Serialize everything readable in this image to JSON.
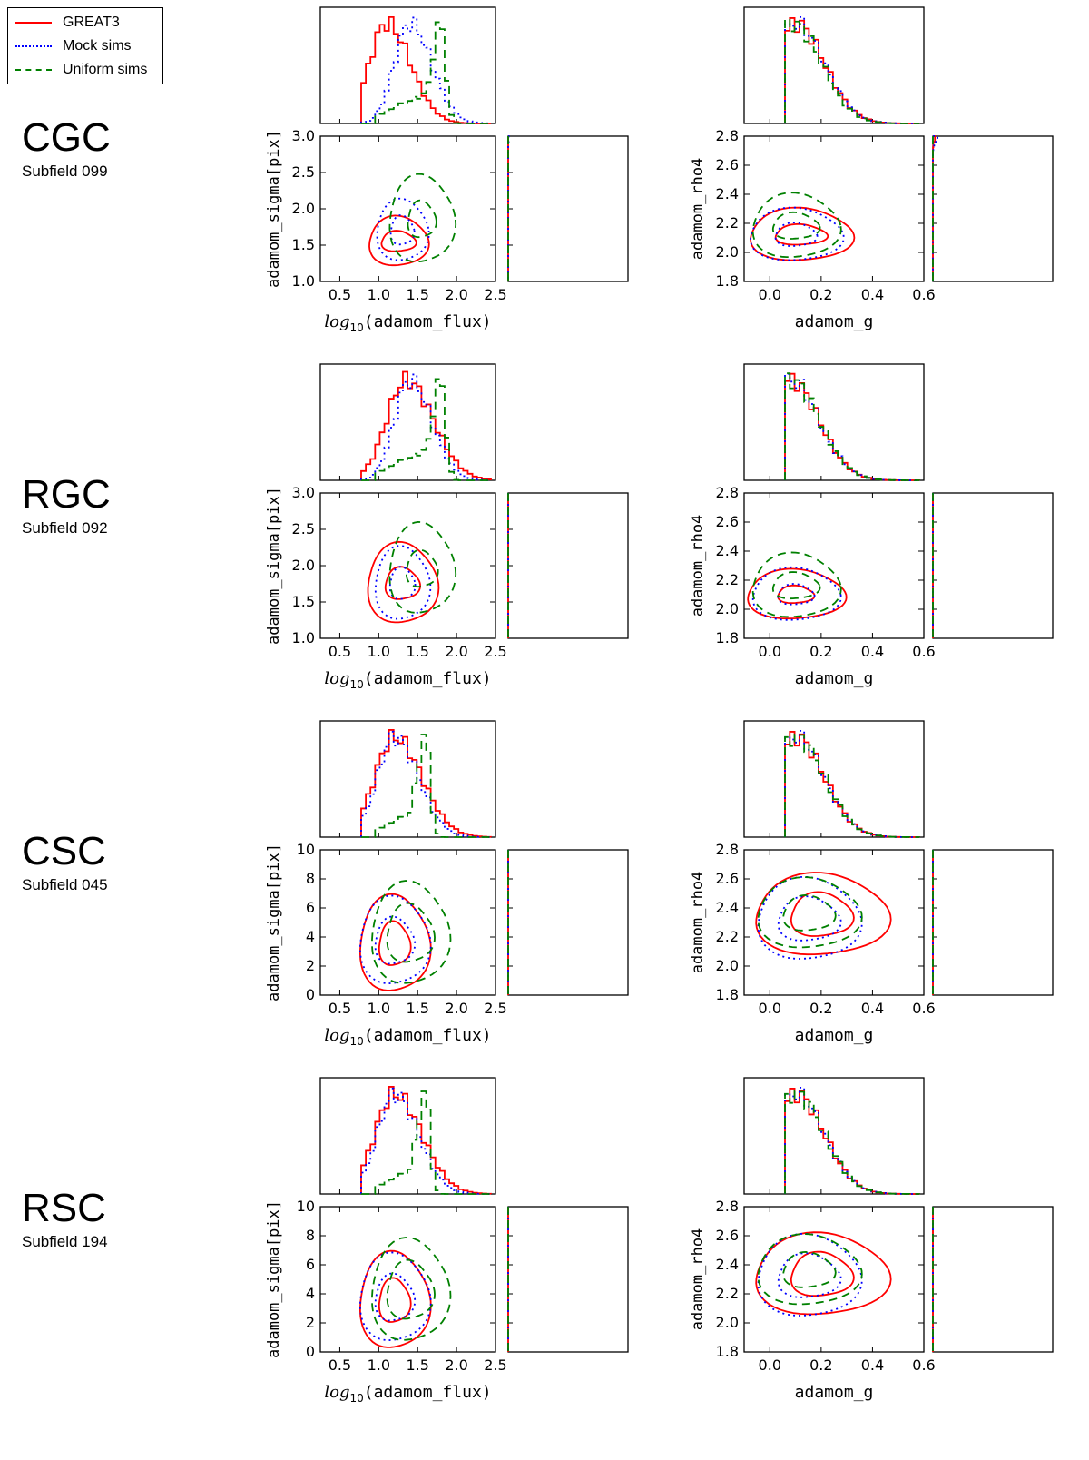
{
  "legend": {
    "items": [
      {
        "label": "GREAT3",
        "color": "#ff0000",
        "style": "solid"
      },
      {
        "label": "Mock sims",
        "color": "#0000ff",
        "style": "dotted"
      },
      {
        "label": "Uniform sims",
        "color": "#008000",
        "style": "dashed"
      }
    ]
  },
  "rows": [
    {
      "title": "CGC",
      "subtitle": "Subfield 099"
    },
    {
      "title": "RGC",
      "subtitle": "Subfield 092"
    },
    {
      "title": "CSC",
      "subtitle": "Subfield 045"
    },
    {
      "title": "RSC",
      "subtitle": "Subfield 194"
    }
  ],
  "chart_data": [
    {
      "type": "contour",
      "row": "CGC",
      "subtitle": "Subfield 099",
      "left": {
        "xlabel_math": "log",
        "xlabel_sub": "10",
        "xlabel_var": "(adamom_flux)",
        "ylabel": "adamom_sigma[pix]",
        "xlim": [
          0.25,
          2.5
        ],
        "ylim": [
          1.0,
          3.0
        ],
        "xticks": [
          "0.5",
          "1.0",
          "1.5",
          "2.0",
          "2.5"
        ],
        "yticks": [
          "1.0",
          "1.5",
          "2.0",
          "2.5",
          "3.0"
        ],
        "series": [
          {
            "name": "GREAT3",
            "x_peak": 1.1,
            "x_width": 0.22,
            "y_peak": 1.47,
            "y_width": 0.28,
            "contour_center": [
              1.25,
              1.55
            ],
            "contour_inner": [
              0.22,
              0.14
            ],
            "contour_outer": [
              0.38,
              0.34
            ]
          },
          {
            "name": "Mock sims",
            "x_peak": 1.4,
            "x_width": 0.2,
            "y_peak": 1.42,
            "y_width": 0.3,
            "contour_center": [
              1.3,
              1.7
            ],
            "contour_inner": [
              0.15,
              0.2
            ],
            "contour_outer": [
              0.33,
              0.42
            ]
          },
          {
            "name": "Uniform sims",
            "x_peak": 1.8,
            "x_width": 0.12,
            "y_peak": 1.55,
            "y_width": 0.4,
            "contour_center": [
              1.55,
              1.85
            ],
            "contour_inner": [
              0.18,
              0.25
            ],
            "contour_outer": [
              0.42,
              0.6
            ]
          }
        ]
      },
      "right": {
        "xlabel": "adamom_g",
        "ylabel": "adamom_rho4",
        "xlim": [
          -0.1,
          0.6
        ],
        "ylim": [
          1.8,
          2.8
        ],
        "xticks": [
          "0.0",
          "0.2",
          "0.4",
          "0.6"
        ],
        "yticks": [
          "1.8",
          "2.0",
          "2.2",
          "2.4",
          "2.6",
          "2.8"
        ],
        "series": [
          {
            "name": "GREAT3",
            "x_peak": 0.1,
            "y_peak": 2.1,
            "contour_center": [
              0.12,
              2.12
            ],
            "contour_inner": [
              0.1,
              0.07
            ],
            "contour_outer": [
              0.2,
              0.18
            ]
          },
          {
            "name": "Mock sims",
            "x_peak": 0.1,
            "y_peak": 2.07,
            "contour_center": [
              0.1,
              2.12
            ],
            "contour_inner": [
              0.08,
              0.08
            ],
            "contour_outer": [
              0.18,
              0.18
            ]
          },
          {
            "name": "Uniform sims",
            "x_peak": 0.09,
            "y_peak": 2.25,
            "contour_center": [
              0.1,
              2.18
            ],
            "contour_inner": [
              0.09,
              0.09
            ],
            "contour_outer": [
              0.17,
              0.22
            ]
          }
        ]
      }
    },
    {
      "type": "contour",
      "row": "RGC",
      "subtitle": "Subfield 092",
      "left": {
        "xlabel_math": "log",
        "xlabel_sub": "10",
        "xlabel_var": "(adamom_flux)",
        "ylabel": "adamom_sigma[pix]",
        "xlim": [
          0.25,
          2.5
        ],
        "ylim": [
          1.0,
          3.0
        ],
        "xticks": [
          "0.5",
          "1.0",
          "1.5",
          "2.0",
          "2.5"
        ],
        "yticks": [
          "1.0",
          "1.5",
          "2.0",
          "2.5",
          "3.0"
        ],
        "series": [
          {
            "name": "GREAT3",
            "x_peak": 1.35,
            "x_width": 0.25,
            "y_peak": 1.6,
            "y_width": 0.28,
            "contour_center": [
              1.3,
              1.75
            ],
            "contour_inner": [
              0.22,
              0.22
            ],
            "contour_outer": [
              0.45,
              0.55
            ]
          },
          {
            "name": "Mock sims",
            "x_peak": 1.4,
            "x_width": 0.2,
            "y_peak": 1.55,
            "y_width": 0.3,
            "contour_center": [
              1.3,
              1.75
            ],
            "contour_inner": [
              0.16,
              0.22
            ],
            "contour_outer": [
              0.35,
              0.5
            ]
          },
          {
            "name": "Uniform sims",
            "x_peak": 1.8,
            "x_width": 0.12,
            "y_peak": 1.55,
            "y_width": 0.4,
            "contour_center": [
              1.55,
              1.95
            ],
            "contour_inner": [
              0.2,
              0.25
            ],
            "contour_outer": [
              0.42,
              0.62
            ]
          }
        ]
      },
      "right": {
        "xlabel": "adamom_g",
        "ylabel": "adamom_rho4",
        "xlim": [
          -0.1,
          0.6
        ],
        "ylim": [
          1.8,
          2.8
        ],
        "xticks": [
          "0.0",
          "0.2",
          "0.4",
          "0.6"
        ],
        "yticks": [
          "1.8",
          "2.0",
          "2.2",
          "2.4",
          "2.6",
          "2.8"
        ],
        "series": [
          {
            "name": "GREAT3",
            "x_peak": 0.08,
            "y_peak": 2.1,
            "contour_center": [
              0.1,
              2.1
            ],
            "contour_inner": [
              0.07,
              0.06
            ],
            "contour_outer": [
              0.19,
              0.17
            ]
          },
          {
            "name": "Mock sims",
            "x_peak": 0.08,
            "y_peak": 2.1,
            "contour_center": [
              0.1,
              2.1
            ],
            "contour_inner": [
              0.07,
              0.07
            ],
            "contour_outer": [
              0.17,
              0.18
            ]
          },
          {
            "name": "Uniform sims",
            "x_peak": 0.08,
            "y_peak": 2.25,
            "contour_center": [
              0.1,
              2.16
            ],
            "contour_inner": [
              0.09,
              0.09
            ],
            "contour_outer": [
              0.17,
              0.22
            ]
          }
        ]
      }
    },
    {
      "type": "contour",
      "row": "CSC",
      "subtitle": "Subfield 045",
      "left": {
        "xlabel_math": "log",
        "xlabel_sub": "10",
        "xlabel_var": "(adamom_flux)",
        "ylabel": "adamom_sigma[pix]",
        "xlim": [
          0.25,
          2.5
        ],
        "ylim": [
          0,
          10
        ],
        "xticks": [
          "0.5",
          "1.0",
          "1.5",
          "2.0",
          "2.5"
        ],
        "yticks": [
          "0",
          "2",
          "4",
          "6",
          "8",
          "10"
        ],
        "series": [
          {
            "name": "GREAT3",
            "x_peak": 1.2,
            "x_width": 0.25,
            "y_peak": 3.0,
            "y_width": 1.2,
            "contour_center": [
              1.2,
              3.5
            ],
            "contour_inner": [
              0.2,
              1.5
            ],
            "contour_outer": [
              0.45,
              3.3
            ]
          },
          {
            "name": "Mock sims",
            "x_peak": 1.2,
            "x_width": 0.22,
            "y_peak": 3.0,
            "y_width": 1.3,
            "contour_center": [
              1.2,
              3.7
            ],
            "contour_inner": [
              0.25,
              1.6
            ],
            "contour_outer": [
              0.45,
              3.0
            ]
          },
          {
            "name": "Uniform sims",
            "x_peak": 1.6,
            "x_width": 0.12,
            "y_peak": 3.2,
            "y_width": 1.4,
            "contour_center": [
              1.4,
              4.2
            ],
            "contour_inner": [
              0.3,
              2.0
            ],
            "contour_outer": [
              0.5,
              3.5
            ]
          }
        ]
      },
      "right": {
        "xlabel": "adamom_g",
        "ylabel": "adamom_rho4",
        "xlim": [
          -0.1,
          0.6
        ],
        "ylim": [
          1.8,
          2.8
        ],
        "xticks": [
          "0.0",
          "0.2",
          "0.4",
          "0.6"
        ],
        "yticks": [
          "1.8",
          "2.0",
          "2.2",
          "2.4",
          "2.6",
          "2.8"
        ],
        "series": [
          {
            "name": "GREAT3",
            "x_peak": 0.1,
            "y_peak": 2.35,
            "contour_center": [
              0.2,
              2.35
            ],
            "contour_inner": [
              0.12,
              0.15
            ],
            "contour_outer": [
              0.26,
              0.28
            ]
          },
          {
            "name": "Mock sims",
            "x_peak": 0.1,
            "y_peak": 2.45,
            "contour_center": [
              0.15,
              2.32
            ],
            "contour_inner": [
              0.12,
              0.15
            ],
            "contour_outer": [
              0.2,
              0.28
            ]
          },
          {
            "name": "Uniform sims",
            "x_peak": 0.1,
            "y_peak": 2.5,
            "contour_center": [
              0.15,
              2.36
            ],
            "contour_inner": [
              0.1,
              0.12
            ],
            "contour_outer": [
              0.2,
              0.24
            ]
          }
        ]
      }
    },
    {
      "type": "contour",
      "row": "RSC",
      "subtitle": "Subfield 194",
      "left": {
        "xlabel_math": "log",
        "xlabel_sub": "10",
        "xlabel_var": "(adamom_flux)",
        "ylabel": "adamom_sigma[pix]",
        "xlim": [
          0.25,
          2.5
        ],
        "ylim": [
          0,
          10
        ],
        "xticks": [
          "0.5",
          "1.0",
          "1.5",
          "2.0",
          "2.5"
        ],
        "yticks": [
          "0",
          "2",
          "4",
          "6",
          "8",
          "10"
        ],
        "series": [
          {
            "name": "GREAT3",
            "x_peak": 1.2,
            "x_width": 0.25,
            "y_peak": 3.2,
            "y_width": 1.2,
            "contour_center": [
              1.2,
              3.5
            ],
            "contour_inner": [
              0.2,
              1.5
            ],
            "contour_outer": [
              0.45,
              3.3
            ]
          },
          {
            "name": "Mock sims",
            "x_peak": 1.2,
            "x_width": 0.22,
            "y_peak": 3.0,
            "y_width": 1.3,
            "contour_center": [
              1.2,
              3.7
            ],
            "contour_inner": [
              0.25,
              1.6
            ],
            "contour_outer": [
              0.45,
              3.0
            ]
          },
          {
            "name": "Uniform sims",
            "x_peak": 1.6,
            "x_width": 0.12,
            "y_peak": 3.2,
            "y_width": 1.4,
            "contour_center": [
              1.4,
              4.2
            ],
            "contour_inner": [
              0.3,
              2.0
            ],
            "contour_outer": [
              0.5,
              3.5
            ]
          }
        ]
      },
      "right": {
        "xlabel": "adamom_g",
        "ylabel": "adamom_rho4",
        "xlim": [
          -0.1,
          0.6
        ],
        "ylim": [
          1.8,
          2.8
        ],
        "xticks": [
          "0.0",
          "0.2",
          "0.4",
          "0.6"
        ],
        "yticks": [
          "1.8",
          "2.0",
          "2.2",
          "2.4",
          "2.6",
          "2.8"
        ],
        "series": [
          {
            "name": "GREAT3",
            "x_peak": 0.1,
            "y_peak": 2.3,
            "contour_center": [
              0.2,
              2.33
            ],
            "contour_inner": [
              0.12,
              0.15
            ],
            "contour_outer": [
              0.26,
              0.28
            ]
          },
          {
            "name": "Mock sims",
            "x_peak": 0.1,
            "y_peak": 2.4,
            "contour_center": [
              0.15,
              2.32
            ],
            "contour_inner": [
              0.12,
              0.15
            ],
            "contour_outer": [
              0.2,
              0.28
            ]
          },
          {
            "name": "Uniform sims",
            "x_peak": 0.1,
            "y_peak": 2.5,
            "contour_center": [
              0.15,
              2.36
            ],
            "contour_inner": [
              0.1,
              0.12
            ],
            "contour_outer": [
              0.2,
              0.24
            ]
          }
        ]
      }
    }
  ]
}
